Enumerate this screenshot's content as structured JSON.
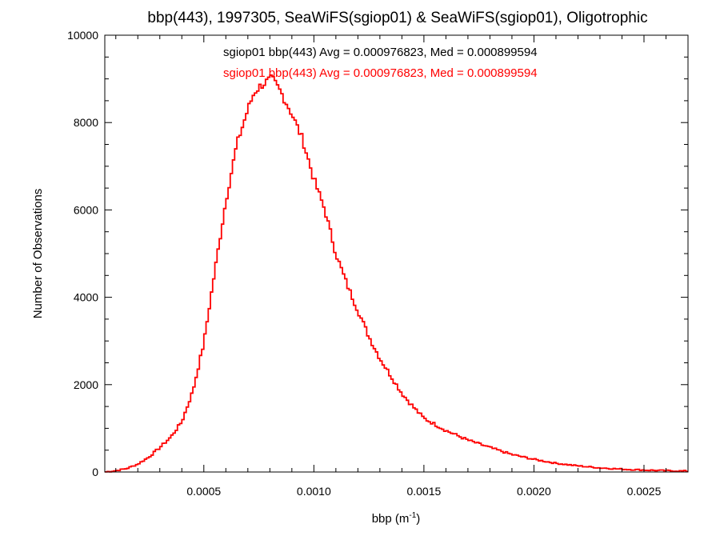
{
  "chart_data": {
    "type": "histogram",
    "title": "bbp(443), 1997305, SeaWiFS(sgiop01) & SeaWiFS(sgiop01), Oligotrophic",
    "xlabel": {
      "text": "bbp (m",
      "superscript": "-1",
      "suffix": ")"
    },
    "ylabel": "Number of Observations",
    "xlim": [
      5e-05,
      0.0027
    ],
    "ylim": [
      0,
      10000
    ],
    "x_ticks": [
      {
        "value": 0.0005,
        "label": "0.0005"
      },
      {
        "value": 0.001,
        "label": "0.0010"
      },
      {
        "value": 0.0015,
        "label": "0.0015"
      },
      {
        "value": 0.002,
        "label": "0.0020"
      },
      {
        "value": 0.0025,
        "label": "0.0025"
      }
    ],
    "y_ticks": [
      {
        "value": 0,
        "label": "0"
      },
      {
        "value": 2000,
        "label": "2000"
      },
      {
        "value": 4000,
        "label": "4000"
      },
      {
        "value": 6000,
        "label": "6000"
      },
      {
        "value": 8000,
        "label": "8000"
      },
      {
        "value": 10000,
        "label": "10000"
      }
    ],
    "grid": false,
    "annotations": [
      {
        "text": "sgiop01 bbp(443) Avg = 0.000976823, Med = 0.000899594",
        "color": "#000000"
      },
      {
        "text": "sgiop01 bbp(443) Avg = 0.000976823, Med = 0.000899594",
        "color": "#ff0000"
      }
    ],
    "series": [
      {
        "name": "sgiop01",
        "color": "#ff0000",
        "x": [
          5e-05,
          0.0001,
          0.00015,
          0.0002,
          0.00025,
          0.0003,
          0.00035,
          0.0004,
          0.00045,
          0.0005,
          0.00055,
          0.0006,
          0.00065,
          0.0007,
          0.00073,
          0.00076,
          0.00079,
          0.00081,
          0.00085,
          0.0009,
          0.00095,
          0.001,
          0.00105,
          0.0011,
          0.00115,
          0.0012,
          0.00125,
          0.0013,
          0.00135,
          0.0014,
          0.00145,
          0.0015,
          0.0016,
          0.0017,
          0.0018,
          0.0019,
          0.002,
          0.0021,
          0.0022,
          0.0023,
          0.0024,
          0.0025,
          0.0026,
          0.0027
        ],
        "y": [
          0,
          30,
          80,
          180,
          340,
          560,
          800,
          1150,
          1850,
          2950,
          4600,
          6200,
          7500,
          8300,
          8700,
          8850,
          8950,
          9000,
          8700,
          8200,
          7600,
          6700,
          6000,
          5000,
          4300,
          3700,
          3100,
          2600,
          2200,
          1800,
          1500,
          1230,
          950,
          730,
          560,
          400,
          290,
          200,
          140,
          95,
          65,
          45,
          30,
          20
        ]
      }
    ]
  }
}
